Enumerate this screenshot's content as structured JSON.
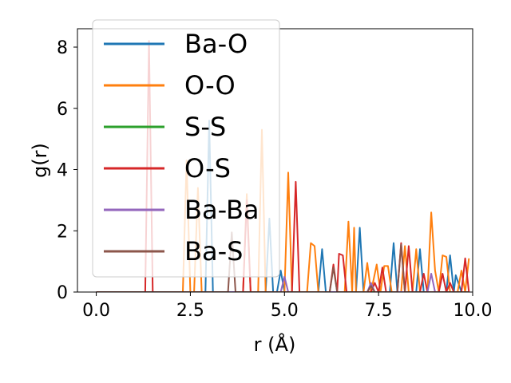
{
  "chart_data": {
    "type": "line",
    "xlabel": "r (Å)",
    "ylabel": "g(r)",
    "xlim": [
      -0.5,
      10.0
    ],
    "ylim": [
      0,
      8.6
    ],
    "xticks": [
      "0.0",
      "2.5",
      "5.0",
      "7.5",
      "10.0"
    ],
    "yticks": [
      "0",
      "2",
      "4",
      "6",
      "8"
    ],
    "grid": false,
    "legend_placement": "upper-left",
    "series": [
      {
        "name": "Ba-O",
        "color": "#1f77b4",
        "points": [
          [
            0,
            0
          ],
          [
            2.9,
            0
          ],
          [
            3.0,
            5.6
          ],
          [
            3.1,
            0
          ],
          [
            4.5,
            0
          ],
          [
            4.6,
            2.4
          ],
          [
            4.7,
            0
          ],
          [
            4.8,
            0
          ],
          [
            4.9,
            0.7
          ],
          [
            5.0,
            0
          ],
          [
            5.9,
            0
          ],
          [
            6.0,
            1.4
          ],
          [
            6.1,
            0
          ],
          [
            6.9,
            0
          ],
          [
            7.0,
            2.1
          ],
          [
            7.1,
            0
          ],
          [
            7.8,
            0
          ],
          [
            7.9,
            1.6
          ],
          [
            8.0,
            0
          ],
          [
            8.5,
            0
          ],
          [
            8.6,
            1.4
          ],
          [
            8.7,
            0
          ],
          [
            9.3,
            0
          ],
          [
            9.4,
            1.2
          ],
          [
            9.5,
            0
          ],
          [
            9.55,
            0.55
          ],
          [
            9.7,
            0
          ]
        ]
      },
      {
        "name": "O-O",
        "color": "#ff7f0e",
        "points": [
          [
            0,
            0
          ],
          [
            2.3,
            0
          ],
          [
            2.4,
            4.3
          ],
          [
            2.5,
            0
          ],
          [
            2.6,
            0
          ],
          [
            2.7,
            3.4
          ],
          [
            2.8,
            0
          ],
          [
            3.9,
            0
          ],
          [
            4.0,
            3.2
          ],
          [
            4.1,
            0
          ],
          [
            4.3,
            0
          ],
          [
            4.4,
            5.3
          ],
          [
            4.5,
            0
          ],
          [
            5.0,
            0
          ],
          [
            5.1,
            3.9
          ],
          [
            5.2,
            0
          ],
          [
            5.6,
            0
          ],
          [
            5.7,
            1.6
          ],
          [
            5.8,
            1.5
          ],
          [
            5.9,
            0
          ],
          [
            6.6,
            0
          ],
          [
            6.7,
            2.3
          ],
          [
            6.8,
            0
          ],
          [
            6.85,
            2.1
          ],
          [
            6.9,
            0
          ],
          [
            7.1,
            0
          ],
          [
            7.2,
            0.95
          ],
          [
            7.3,
            0
          ],
          [
            7.45,
            0.9
          ],
          [
            7.55,
            0
          ],
          [
            7.65,
            0.85
          ],
          [
            7.75,
            0.85
          ],
          [
            7.85,
            0
          ],
          [
            8.1,
            0
          ],
          [
            8.2,
            1.5
          ],
          [
            8.3,
            0
          ],
          [
            8.4,
            0
          ],
          [
            8.5,
            1.4
          ],
          [
            8.6,
            0
          ],
          [
            8.8,
            0
          ],
          [
            8.9,
            2.6
          ],
          [
            9.0,
            0.7
          ],
          [
            9.1,
            0
          ],
          [
            9.2,
            1.2
          ],
          [
            9.3,
            1.15
          ],
          [
            9.4,
            0
          ],
          [
            9.6,
            0
          ],
          [
            9.7,
            0.7
          ],
          [
            9.8,
            0
          ],
          [
            9.9,
            1.1
          ]
        ]
      },
      {
        "name": "S-S",
        "color": "#2ca02c",
        "points": [
          [
            0,
            0
          ],
          [
            9.9,
            0
          ]
        ]
      },
      {
        "name": "O-S",
        "color": "#d62728",
        "points": [
          [
            0,
            0
          ],
          [
            1.3,
            0
          ],
          [
            1.4,
            8.2
          ],
          [
            1.5,
            0
          ],
          [
            3.9,
            0
          ],
          [
            4.0,
            3.0
          ],
          [
            4.1,
            0
          ],
          [
            5.2,
            0
          ],
          [
            5.3,
            3.6
          ],
          [
            5.4,
            0
          ],
          [
            6.2,
            0
          ],
          [
            6.3,
            0.9
          ],
          [
            6.4,
            0
          ],
          [
            6.45,
            1.25
          ],
          [
            6.55,
            1.2
          ],
          [
            6.65,
            0
          ],
          [
            7.3,
            0
          ],
          [
            7.4,
            0.3
          ],
          [
            7.5,
            0
          ],
          [
            7.6,
            0.8
          ],
          [
            7.7,
            0
          ],
          [
            8.0,
            0
          ],
          [
            8.1,
            1.6
          ],
          [
            8.2,
            0
          ],
          [
            8.3,
            1.5
          ],
          [
            8.4,
            0
          ],
          [
            8.6,
            0
          ],
          [
            8.7,
            0.6
          ],
          [
            8.8,
            0
          ],
          [
            9.1,
            0
          ],
          [
            9.2,
            0.6
          ],
          [
            9.3,
            0
          ],
          [
            9.4,
            0.3
          ],
          [
            9.5,
            0
          ],
          [
            9.7,
            0
          ],
          [
            9.8,
            1.1
          ],
          [
            9.9,
            0
          ]
        ]
      },
      {
        "name": "Ba-Ba",
        "color": "#9467bd",
        "points": [
          [
            0,
            0
          ],
          [
            4.9,
            0
          ],
          [
            5.0,
            0.5
          ],
          [
            5.1,
            0
          ],
          [
            7.2,
            0
          ],
          [
            7.3,
            0.3
          ],
          [
            7.4,
            0
          ],
          [
            8.8,
            0
          ],
          [
            8.9,
            0.6
          ],
          [
            9.0,
            0
          ],
          [
            9.9,
            0
          ]
        ]
      },
      {
        "name": "Ba-S",
        "color": "#8c564b",
        "points": [
          [
            0,
            0
          ],
          [
            3.5,
            0
          ],
          [
            3.6,
            1.95
          ],
          [
            3.7,
            0
          ],
          [
            6.2,
            0
          ],
          [
            6.3,
            0.8
          ],
          [
            6.4,
            0
          ],
          [
            7.2,
            0
          ],
          [
            7.3,
            0.2
          ],
          [
            7.4,
            0
          ],
          [
            8.0,
            0
          ],
          [
            8.1,
            1.55
          ],
          [
            8.2,
            0
          ],
          [
            9.9,
            0
          ]
        ]
      }
    ]
  }
}
